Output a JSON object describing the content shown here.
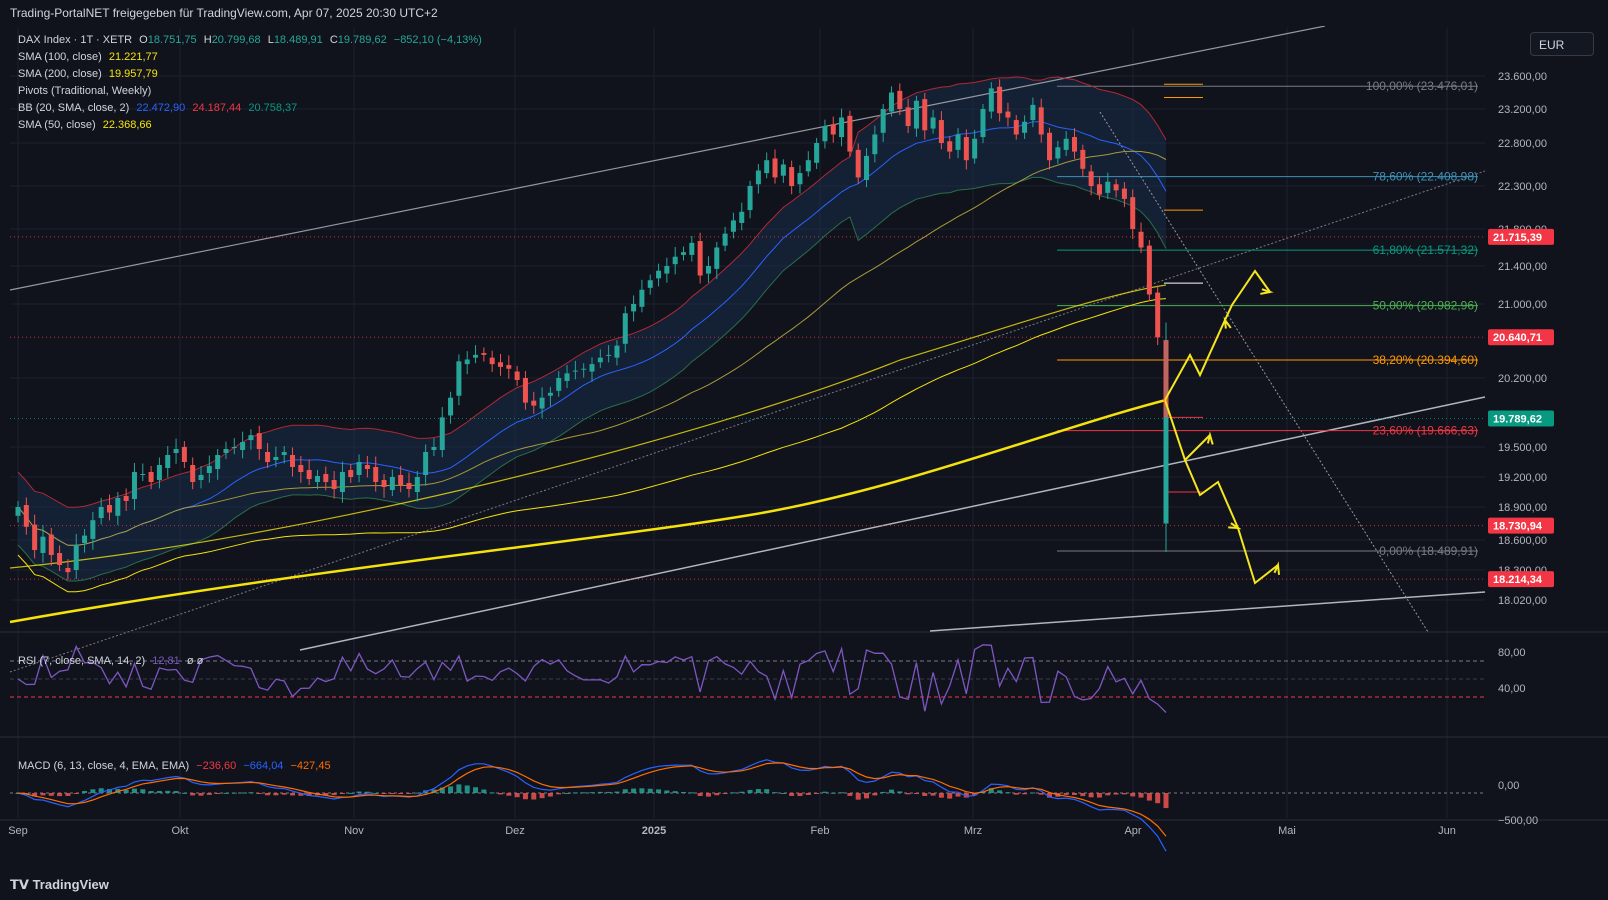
{
  "header": {
    "publisher_text": "Trading-PortalNET freigegeben für TradingView.com, Apr 07, 2025 20:30 UTC+2"
  },
  "footer": {
    "logo_text": "TradingView"
  },
  "currency_button": "EUR",
  "legend": {
    "symbol": "DAX Index · 1T · XETR",
    "o_label": "O",
    "o_val": "18.751,75",
    "h_label": "H",
    "h_val": "20.799,68",
    "l_label": "L",
    "l_val": "18.489,91",
    "c_label": "C",
    "c_val": "19.789,62",
    "change": "−852,10 (−4,13%)",
    "sma100_label": "SMA (100, close)",
    "sma100_val": "21.221,77",
    "sma200_label": "SMA (200, close)",
    "sma200_val": "19.957,79",
    "pivots_label": "Pivots (Traditional, Weekly)",
    "bb_label": "BB (20, SMA, close, 2)",
    "bb_mid": "22.472,90",
    "bb_up": "24.187,44",
    "bb_low": "20.758,37",
    "sma50_label": "SMA (50, close)",
    "sma50_val": "22.368,66"
  },
  "rsi_legend": {
    "label": "RSI (7, close, SMA, 14, 2)",
    "value": "12,81",
    "extra": "ø ø"
  },
  "macd_legend": {
    "label": "MACD (6, 13, close, 4, EMA, EMA)",
    "v1": "−236,60",
    "v2": "−664,04",
    "v3": "−427,45"
  },
  "colors": {
    "bg": "#10131c",
    "up": "#26a69a",
    "down": "#ef5350",
    "sma200": "#f5e20b",
    "sma100": "#a89a3a",
    "bb_basis": "#2962ff",
    "bb_band": "#b22833",
    "sma50": "#2a6e4a",
    "rsi": "#7e57c2",
    "macd": "#2962ff",
    "signal": "#ff6d00",
    "arrow": "#f6e61e"
  },
  "chart_data": {
    "type": "candlestick",
    "x_ticks": [
      "Sep",
      "Okt",
      "Nov",
      "Dez",
      "2025",
      "Feb",
      "Mrz",
      "Apr",
      "Mai",
      "Jun"
    ],
    "y_ticks": [
      "23.600,00",
      "23.200,00",
      "22.800,00",
      "22.300,00",
      "21.800,00",
      "21.400,00",
      "21.000,00",
      "20.200,00",
      "19.500,00",
      "19.200,00",
      "18.900,00",
      "18.600,00",
      "18.300,00",
      "18.020,00"
    ],
    "y_tick_values": [
      23600,
      23200,
      22800,
      22300,
      21800,
      21400,
      21000,
      20200,
      19500,
      19200,
      18900,
      18600,
      18300,
      18020
    ],
    "price_tags": [
      {
        "text": "21.715,39",
        "value": 21715.39,
        "color": "#f23645"
      },
      {
        "text": "20.640,71",
        "value": 20640.71,
        "color": "#f23645"
      },
      {
        "text": "19.789,62",
        "value": 19789.62,
        "color": "#089981"
      },
      {
        "text": "18.730,94",
        "value": 18730.94,
        "color": "#f23645"
      },
      {
        "text": "18.214,34",
        "value": 18214.34,
        "color": "#f23645"
      }
    ],
    "fib_levels": [
      {
        "label": "100,00% (23.476,01)",
        "value": 23476.01,
        "color": "#787b86"
      },
      {
        "label": "78,60% (22.408,98)",
        "value": 22408.98,
        "color": "#3d93b8"
      },
      {
        "label": "61,80% (21.571,32)",
        "value": 21571.32,
        "color": "#089981"
      },
      {
        "label": "50,00% (20.982,96)",
        "value": 20982.96,
        "color": "#4caf50"
      },
      {
        "label": "38,20% (20.394,60)",
        "value": 20394.6,
        "color": "#ff9800"
      },
      {
        "label": "23,60% (19.666,63)",
        "value": 19666.63,
        "color": "#f23645"
      },
      {
        "label": "0,00% (18.489,91)",
        "value": 18489.91,
        "color": "#787b86"
      }
    ],
    "pivot_levels": [
      23700,
      23340,
      22020,
      21220,
      19800,
      19050
    ],
    "rsi_ticks": [
      "80,00",
      "40,00"
    ],
    "rsi_tick_values": [
      80,
      40
    ],
    "macd_ticks": [
      "0,00",
      "−500,00"
    ],
    "macd_tick_values": [
      0,
      -500
    ],
    "closes": [
      18900,
      18720,
      18500,
      18630,
      18450,
      18350,
      18280,
      18550,
      18640,
      18780,
      18900,
      18850,
      18990,
      18960,
      19250,
      19230,
      19150,
      19320,
      19420,
      19480,
      19350,
      19150,
      19220,
      19310,
      19420,
      19480,
      19500,
      19550,
      19620,
      19480,
      19350,
      19400,
      19450,
      19300,
      19250,
      19180,
      19210,
      19150,
      19080,
      19250,
      19200,
      19350,
      19280,
      19150,
      19100,
      19200,
      19120,
      19080,
      19200,
      19450,
      19500,
      19800,
      20000,
      20380,
      20400,
      20450,
      20450,
      20350,
      20320,
      20300,
      20180,
      19950,
      19920,
      20000,
      20050,
      20200,
      20250,
      20280,
      20300,
      20350,
      20420,
      20450,
      20550,
      20900,
      21000,
      21150,
      21250,
      21350,
      21400,
      21500,
      21550,
      21650,
      21300,
      21400,
      21600,
      21750,
      21900,
      22000,
      22300,
      22480,
      22600,
      22400,
      22550,
      22300,
      22450,
      22600,
      22800,
      23000,
      22900,
      23100,
      22700,
      22400,
      22650,
      22900,
      23200,
      23400,
      23200,
      23000,
      23300,
      22950,
      23100,
      22800,
      22700,
      22900,
      22600,
      22850,
      23200,
      23450,
      23150,
      23100,
      22900,
      23050,
      23250,
      22900,
      22600,
      22750,
      22850,
      22700,
      22500,
      22300,
      22200,
      22350,
      22250,
      22150,
      21800,
      21600,
      21100,
      20640,
      19789.62
    ]
  }
}
